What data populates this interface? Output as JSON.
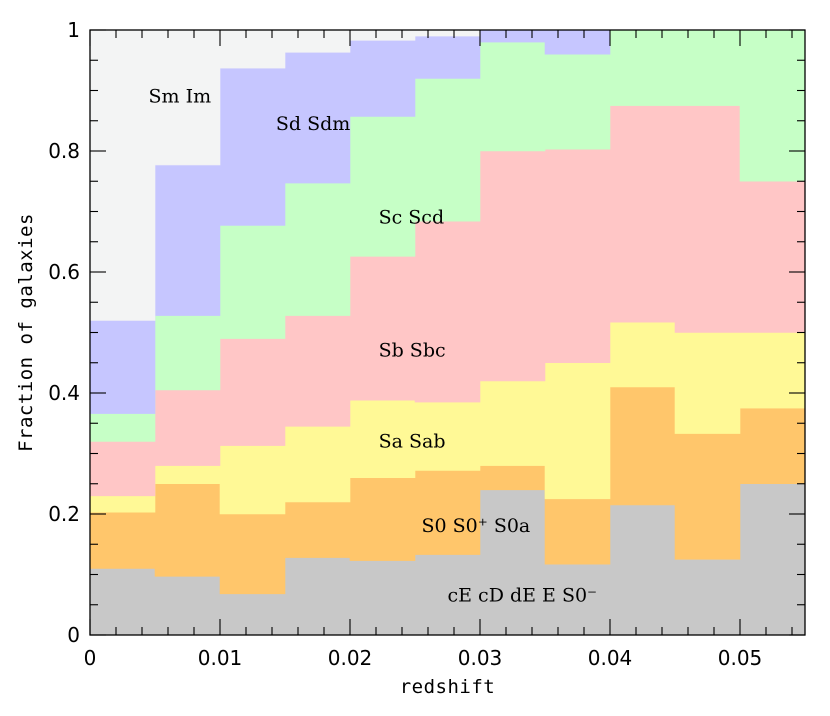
{
  "chart_data": {
    "type": "area",
    "subtype": "stacked-step",
    "x_edges": [
      0,
      0.005,
      0.01,
      0.015,
      0.02,
      0.025,
      0.03,
      0.035,
      0.04,
      0.045,
      0.05,
      0.055
    ],
    "xlabel": "redshift",
    "ylabel": "Fraction of galaxies",
    "xlim": [
      0,
      0.055
    ],
    "ylim": [
      0,
      1
    ],
    "x_ticks": [
      0,
      0.01,
      0.02,
      0.03,
      0.04,
      0.05
    ],
    "x_tick_labels": [
      "0",
      "0.01",
      "0.02",
      "0.03",
      "0.04",
      "0.05"
    ],
    "y_ticks": [
      0,
      0.2,
      0.4,
      0.6,
      0.8,
      1
    ],
    "y_tick_labels": [
      "0",
      "0.2",
      "0.4",
      "0.6",
      "0.8",
      "1"
    ],
    "series": [
      {
        "name": "cE cD dE E S0⁻",
        "color": "#c8c8c8",
        "cumulative": [
          0.11,
          0.097,
          0.068,
          0.128,
          0.123,
          0.133,
          0.24,
          0.117,
          0.215,
          0.125,
          0.25
        ]
      },
      {
        "name": "S0 S0⁺ S0a",
        "color": "#ffc66b",
        "cumulative": [
          0.203,
          0.25,
          0.2,
          0.22,
          0.26,
          0.272,
          0.28,
          0.225,
          0.41,
          0.333,
          0.375
        ]
      },
      {
        "name": "Sa Sab",
        "color": "#fff996",
        "cumulative": [
          0.23,
          0.28,
          0.313,
          0.345,
          0.388,
          0.385,
          0.42,
          0.45,
          0.517,
          0.5,
          0.5
        ]
      },
      {
        "name": "Sb Sbc",
        "color": "#ffc6c6",
        "cumulative": [
          0.32,
          0.405,
          0.49,
          0.528,
          0.626,
          0.684,
          0.8,
          0.803,
          0.875,
          0.875,
          0.75
        ]
      },
      {
        "name": "Sc Scd",
        "color": "#c6ffc6",
        "cumulative": [
          0.366,
          0.528,
          0.677,
          0.747,
          0.857,
          0.92,
          0.98,
          0.96,
          1.0,
          1.0,
          1.0
        ]
      },
      {
        "name": "Sd Sdm",
        "color": "#c6c6ff",
        "cumulative": [
          0.52,
          0.777,
          0.937,
          0.963,
          0.983,
          0.99,
          1.0,
          1.0,
          1.0,
          1.0,
          1.0
        ]
      },
      {
        "name": "Sm Im",
        "color": "#f3f4f4",
        "cumulative": [
          1.0,
          1.0,
          1.0,
          1.0,
          1.0,
          1.0,
          1.0,
          1.0,
          1.0,
          1.0,
          1.0
        ]
      }
    ],
    "annotations": [
      {
        "text": "Sm Im",
        "x": 0.0045,
        "y": 0.88
      },
      {
        "text": "Sd Sdm",
        "x": 0.0143,
        "y": 0.835
      },
      {
        "text": "Sc Scd",
        "x": 0.0222,
        "y": 0.68
      },
      {
        "text": "Sb Sbc",
        "x": 0.0222,
        "y": 0.46
      },
      {
        "text": "Sa Sab",
        "x": 0.0222,
        "y": 0.31
      },
      {
        "text": "S0 S0⁺ S0a",
        "x": 0.0255,
        "y": 0.17
      },
      {
        "text": "cE cD dE E S0⁻",
        "x": 0.0275,
        "y": 0.055
      }
    ],
    "grid": false,
    "legend": "none"
  }
}
